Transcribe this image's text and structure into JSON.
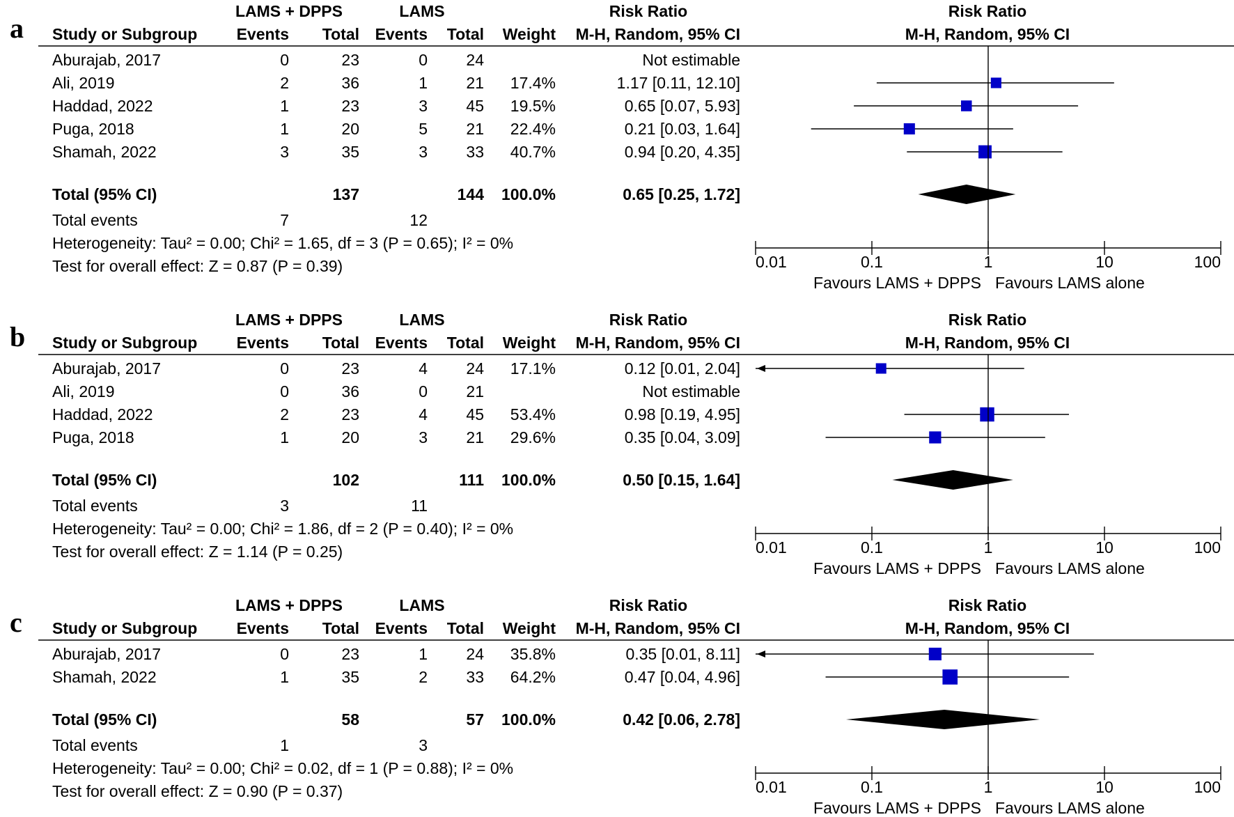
{
  "chart_data": [
    {
      "type": "forest",
      "panel_label": "a",
      "group1_name": "LAMS + DPPS",
      "group2_name": "LAMS",
      "col_study": "Study or Subgroup",
      "col_events": "Events",
      "col_total": "Total",
      "col_weight": "Weight",
      "rr_title": "Risk Ratio",
      "rr_method": "M-H, Random, 95% CI",
      "studies": [
        {
          "name": "Aburajab, 2017",
          "e1": "0",
          "n1": "23",
          "e2": "0",
          "n2": "24",
          "weight": "",
          "ci_text": "Not estimable",
          "rr": null,
          "lo": null,
          "hi": null,
          "w": 0
        },
        {
          "name": "Ali, 2019",
          "e1": "2",
          "n1": "36",
          "e2": "1",
          "n2": "21",
          "weight": "17.4%",
          "ci_text": "1.17 [0.11, 12.10]",
          "rr": 1.17,
          "lo": 0.11,
          "hi": 12.1,
          "w": 17.4
        },
        {
          "name": "Haddad, 2022",
          "e1": "1",
          "n1": "23",
          "e2": "3",
          "n2": "45",
          "weight": "19.5%",
          "ci_text": "0.65 [0.07, 5.93]",
          "rr": 0.65,
          "lo": 0.07,
          "hi": 5.93,
          "w": 19.5
        },
        {
          "name": "Puga, 2018",
          "e1": "1",
          "n1": "20",
          "e2": "5",
          "n2": "21",
          "weight": "22.4%",
          "ci_text": "0.21 [0.03, 1.64]",
          "rr": 0.21,
          "lo": 0.03,
          "hi": 1.64,
          "w": 22.4
        },
        {
          "name": "Shamah, 2022",
          "e1": "3",
          "n1": "35",
          "e2": "3",
          "n2": "33",
          "weight": "40.7%",
          "ci_text": "0.94 [0.20, 4.35]",
          "rr": 0.94,
          "lo": 0.2,
          "hi": 4.35,
          "w": 40.7
        }
      ],
      "total": {
        "label": "Total (95% CI)",
        "n1": "137",
        "n2": "144",
        "weight": "100.0%",
        "ci_text": "0.65 [0.25, 1.72]",
        "rr": 0.65,
        "lo": 0.25,
        "hi": 1.72
      },
      "total_events": {
        "label": "Total events",
        "e1": "7",
        "e2": "12"
      },
      "heterogeneity": "Heterogeneity: Tau² = 0.00; Chi² = 1.65, df = 3 (P = 0.65); I² = 0%",
      "overall_effect": "Test for overall effect: Z = 0.87 (P = 0.39)",
      "axis_ticks": [
        "0.01",
        "0.1",
        "1",
        "10",
        "100"
      ],
      "tick_values": [
        0.01,
        0.1,
        1,
        10,
        100
      ],
      "xscale": "log",
      "favours_left": "Favours LAMS + DPPS",
      "favours_right": "Favours LAMS alone"
    },
    {
      "type": "forest",
      "panel_label": "b",
      "group1_name": "LAMS + DPPS",
      "group2_name": "LAMS",
      "col_study": "Study or Subgroup",
      "col_events": "Events",
      "col_total": "Total",
      "col_weight": "Weight",
      "rr_title": "Risk Ratio",
      "rr_method": "M-H, Random, 95% CI",
      "studies": [
        {
          "name": "Aburajab, 2017",
          "e1": "0",
          "n1": "23",
          "e2": "4",
          "n2": "24",
          "weight": "17.1%",
          "ci_text": "0.12 [0.01, 2.04]",
          "rr": 0.12,
          "lo": 0.01,
          "hi": 2.04,
          "w": 17.1
        },
        {
          "name": "Ali, 2019",
          "e1": "0",
          "n1": "36",
          "e2": "0",
          "n2": "21",
          "weight": "",
          "ci_text": "Not estimable",
          "rr": null,
          "lo": null,
          "hi": null,
          "w": 0
        },
        {
          "name": "Haddad, 2022",
          "e1": "2",
          "n1": "23",
          "e2": "4",
          "n2": "45",
          "weight": "53.4%",
          "ci_text": "0.98 [0.19, 4.95]",
          "rr": 0.98,
          "lo": 0.19,
          "hi": 4.95,
          "w": 53.4
        },
        {
          "name": "Puga, 2018",
          "e1": "1",
          "n1": "20",
          "e2": "3",
          "n2": "21",
          "weight": "29.6%",
          "ci_text": "0.35 [0.04, 3.09]",
          "rr": 0.35,
          "lo": 0.04,
          "hi": 3.09,
          "w": 29.6
        }
      ],
      "total": {
        "label": "Total (95% CI)",
        "n1": "102",
        "n2": "111",
        "weight": "100.0%",
        "ci_text": "0.50 [0.15, 1.64]",
        "rr": 0.5,
        "lo": 0.15,
        "hi": 1.64
      },
      "total_events": {
        "label": "Total events",
        "e1": "3",
        "e2": "11"
      },
      "heterogeneity": "Heterogeneity: Tau² = 0.00; Chi² = 1.86, df = 2 (P = 0.40); I² = 0%",
      "overall_effect": "Test for overall effect: Z = 1.14 (P = 0.25)",
      "axis_ticks": [
        "0.01",
        "0.1",
        "1",
        "10",
        "100"
      ],
      "tick_values": [
        0.01,
        0.1,
        1,
        10,
        100
      ],
      "xscale": "log",
      "favours_left": "Favours LAMS + DPPS",
      "favours_right": "Favours LAMS alone"
    },
    {
      "type": "forest",
      "panel_label": "c",
      "group1_name": "LAMS + DPPS",
      "group2_name": "LAMS",
      "col_study": "Study or Subgroup",
      "col_events": "Events",
      "col_total": "Total",
      "col_weight": "Weight",
      "rr_title": "Risk Ratio",
      "rr_method": "M-H, Random, 95% CI",
      "studies": [
        {
          "name": "Aburajab, 2017",
          "e1": "0",
          "n1": "23",
          "e2": "1",
          "n2": "24",
          "weight": "35.8%",
          "ci_text": "0.35 [0.01, 8.11]",
          "rr": 0.35,
          "lo": 0.01,
          "hi": 8.11,
          "w": 35.8
        },
        {
          "name": "Shamah, 2022",
          "e1": "1",
          "n1": "35",
          "e2": "2",
          "n2": "33",
          "weight": "64.2%",
          "ci_text": "0.47 [0.04, 4.96]",
          "rr": 0.47,
          "lo": 0.04,
          "hi": 4.96,
          "w": 64.2
        }
      ],
      "total": {
        "label": "Total (95% CI)",
        "n1": "58",
        "n2": "57",
        "weight": "100.0%",
        "ci_text": "0.42 [0.06, 2.78]",
        "rr": 0.42,
        "lo": 0.06,
        "hi": 2.78
      },
      "total_events": {
        "label": "Total events",
        "e1": "1",
        "e2": "3"
      },
      "heterogeneity": "Heterogeneity: Tau² = 0.00; Chi² = 0.02, df = 1 (P = 0.88); I² = 0%",
      "overall_effect": "Test for overall effect: Z = 0.90 (P = 0.37)",
      "axis_ticks": [
        "0.01",
        "0.1",
        "1",
        "10",
        "100"
      ],
      "tick_values": [
        0.01,
        0.1,
        1,
        10,
        100
      ],
      "xscale": "log",
      "favours_left": "Favours LAMS + DPPS",
      "favours_right": "Favours LAMS alone"
    }
  ],
  "colors": {
    "marker": "#0000c8",
    "line": "#000000",
    "diamond": "#000000"
  }
}
